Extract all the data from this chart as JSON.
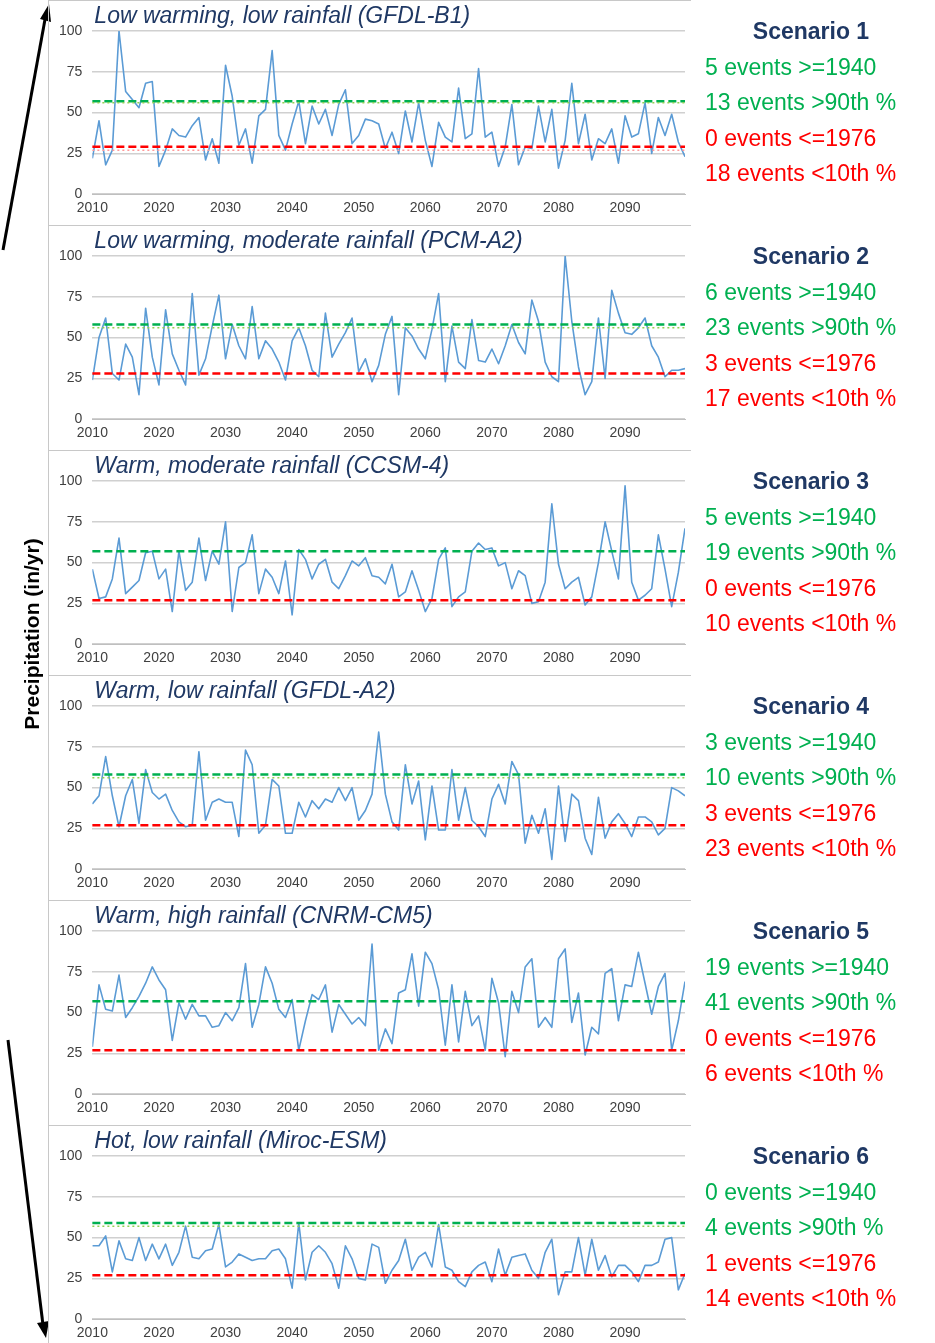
{
  "chart_data": [
    {
      "type": "line",
      "title": "Low warming, low rainfall (GFDL-B1)",
      "xlim": [
        2010,
        2099
      ],
      "xticks": [
        2010,
        2020,
        2030,
        2040,
        2050,
        2060,
        2070,
        2080,
        2090
      ],
      "ylim": [
        0,
        100
      ],
      "yticks": [
        0,
        25,
        50,
        75,
        100
      ],
      "grid": "y",
      "marker": "none",
      "x": [
        2010,
        2011,
        2012,
        2013,
        2014,
        2015,
        2016,
        2017,
        2018,
        2019,
        2020,
        2021,
        2022,
        2023,
        2024,
        2025,
        2026,
        2027,
        2028,
        2029,
        2030,
        2031,
        2032,
        2033,
        2034,
        2035,
        2036,
        2037,
        2038,
        2039,
        2040,
        2041,
        2042,
        2043,
        2044,
        2045,
        2046,
        2047,
        2048,
        2049,
        2050,
        2051,
        2052,
        2053,
        2054,
        2055,
        2056,
        2057,
        2058,
        2059,
        2060,
        2061,
        2062,
        2063,
        2064,
        2065,
        2066,
        2067,
        2068,
        2069,
        2070,
        2071,
        2072,
        2073,
        2074,
        2075,
        2076,
        2077,
        2078,
        2079,
        2080,
        2081,
        2082,
        2083,
        2084,
        2085,
        2086,
        2087,
        2088,
        2089,
        2090,
        2091,
        2092,
        2093,
        2094,
        2095,
        2096,
        2097,
        2098,
        2099
      ],
      "series": [
        {
          "color": "#5b9bd5",
          "values": [
            22,
            45,
            18,
            27,
            100,
            63,
            58,
            53,
            68,
            69,
            17,
            27,
            40,
            36,
            35,
            42,
            47,
            21,
            34,
            19,
            79,
            60,
            30,
            40,
            19,
            48,
            52,
            88,
            36,
            27,
            43,
            57,
            31,
            54,
            43,
            52,
            36,
            55,
            64,
            31,
            36,
            46,
            45,
            43,
            28,
            38,
            25,
            51,
            32,
            56,
            33,
            17,
            44,
            35,
            32,
            65,
            34,
            37,
            77,
            35,
            38,
            17,
            29,
            55,
            18,
            29,
            28,
            54,
            32,
            52,
            16,
            33,
            68,
            31,
            49,
            21,
            34,
            31,
            40,
            19,
            48,
            35,
            37,
            56,
            25,
            47,
            36,
            49,
            32,
            23
          ]
        }
      ],
      "ref_lines": [
        {
          "axis": "y",
          "value": 57,
          "color": "#00b050",
          "line_style": "dashed"
        },
        {
          "axis": "y",
          "value": 29,
          "color": "#ff0000",
          "line_style": "dashed"
        },
        {
          "axis": "y",
          "value": 56,
          "color": "#92d050",
          "line_style": "dotted"
        },
        {
          "axis": "y",
          "value": 27,
          "color": "#ff9999",
          "line_style": "dotted"
        }
      ],
      "annotations": [
        "Scenario 1",
        "5 events >=1940",
        "13 events >90th %",
        "0 events <=1976",
        "18 events <10th %"
      ]
    },
    {
      "type": "line",
      "title": "Low warming, moderate rainfall (PCM-A2)",
      "xlim": [
        2010,
        2099
      ],
      "xticks": [
        2010,
        2020,
        2030,
        2040,
        2050,
        2060,
        2070,
        2080,
        2090
      ],
      "ylim": [
        0,
        100
      ],
      "yticks": [
        0,
        25,
        50,
        75,
        100
      ],
      "grid": "y",
      "marker": "none",
      "x": [
        2010,
        2011,
        2012,
        2013,
        2014,
        2015,
        2016,
        2017,
        2018,
        2019,
        2020,
        2021,
        2022,
        2023,
        2024,
        2025,
        2026,
        2027,
        2028,
        2029,
        2030,
        2031,
        2032,
        2033,
        2034,
        2035,
        2036,
        2037,
        2038,
        2039,
        2040,
        2041,
        2042,
        2043,
        2044,
        2045,
        2046,
        2047,
        2048,
        2049,
        2050,
        2051,
        2052,
        2053,
        2054,
        2055,
        2056,
        2057,
        2058,
        2059,
        2060,
        2061,
        2062,
        2063,
        2064,
        2065,
        2066,
        2067,
        2068,
        2069,
        2070,
        2071,
        2072,
        2073,
        2074,
        2075,
        2076,
        2077,
        2078,
        2079,
        2080,
        2081,
        2082,
        2083,
        2084,
        2085,
        2086,
        2087,
        2088,
        2089,
        2090,
        2091,
        2092,
        2093,
        2094,
        2095,
        2096,
        2097,
        2098,
        2099
      ],
      "series": [
        {
          "color": "#5b9bd5",
          "values": [
            24,
            50,
            62,
            28,
            24,
            46,
            38,
            15,
            68,
            38,
            21,
            67,
            40,
            30,
            21,
            77,
            27,
            37,
            57,
            76,
            37,
            58,
            45,
            37,
            69,
            37,
            48,
            43,
            35,
            24,
            48,
            56,
            45,
            30,
            26,
            65,
            38,
            46,
            53,
            62,
            29,
            37,
            23,
            33,
            52,
            63,
            15,
            56,
            51,
            43,
            37,
            55,
            77,
            23,
            57,
            35,
            31,
            61,
            36,
            35,
            43,
            34,
            45,
            58,
            47,
            40,
            73,
            60,
            35,
            26,
            23,
            100,
            60,
            32,
            15,
            23,
            62,
            25,
            79,
            65,
            53,
            52,
            56,
            62,
            45,
            38,
            26,
            30,
            30,
            31
          ]
        }
      ],
      "ref_lines": [
        {
          "axis": "y",
          "value": 58,
          "color": "#00b050",
          "line_style": "dashed"
        },
        {
          "axis": "y",
          "value": 28,
          "color": "#ff0000",
          "line_style": "dashed"
        },
        {
          "axis": "y",
          "value": 56,
          "color": "#92d050",
          "line_style": "dotted"
        }
      ],
      "annotations": [
        "Scenario 2",
        "6 events >=1940",
        "23 events >90th %",
        "3 events <=1976",
        "17 events <10th %"
      ]
    },
    {
      "type": "line",
      "title": "Warm, moderate rainfall (CCSM-4)",
      "ylabel": "Precipitation (in/yr)",
      "xlim": [
        2010,
        2099
      ],
      "xticks": [
        2010,
        2020,
        2030,
        2040,
        2050,
        2060,
        2070,
        2080,
        2090
      ],
      "ylim": [
        0,
        100
      ],
      "yticks": [
        0,
        25,
        50,
        75,
        100
      ],
      "grid": "y",
      "marker": "none",
      "x": [
        2010,
        2011,
        2012,
        2013,
        2014,
        2015,
        2016,
        2017,
        2018,
        2019,
        2020,
        2021,
        2022,
        2023,
        2024,
        2025,
        2026,
        2027,
        2028,
        2029,
        2030,
        2031,
        2032,
        2033,
        2034,
        2035,
        2036,
        2037,
        2038,
        2039,
        2040,
        2041,
        2042,
        2043,
        2044,
        2045,
        2046,
        2047,
        2048,
        2049,
        2050,
        2051,
        2052,
        2053,
        2054,
        2055,
        2056,
        2057,
        2058,
        2059,
        2060,
        2061,
        2062,
        2063,
        2064,
        2065,
        2066,
        2067,
        2068,
        2069,
        2070,
        2071,
        2072,
        2073,
        2074,
        2075,
        2076,
        2077,
        2078,
        2079,
        2080,
        2081,
        2082,
        2083,
        2084,
        2085,
        2086,
        2087,
        2088,
        2089,
        2090,
        2091,
        2092,
        2093,
        2094,
        2095,
        2096,
        2097,
        2098,
        2099
      ],
      "series": [
        {
          "color": "#5b9bd5",
          "values": [
            46,
            28,
            29,
            40,
            65,
            31,
            35,
            39,
            56,
            57,
            40,
            46,
            20,
            57,
            33,
            38,
            65,
            39,
            57,
            49,
            75,
            20,
            47,
            50,
            67,
            31,
            46,
            41,
            31,
            51,
            18,
            58,
            52,
            40,
            49,
            52,
            38,
            34,
            42,
            51,
            48,
            53,
            42,
            41,
            37,
            49,
            29,
            32,
            45,
            33,
            20,
            28,
            52,
            59,
            23,
            29,
            32,
            57,
            62,
            58,
            59,
            48,
            50,
            34,
            45,
            42,
            25,
            26,
            38,
            86,
            49,
            34,
            38,
            41,
            24,
            29,
            50,
            75,
            57,
            40,
            97,
            38,
            27,
            30,
            34,
            67,
            46,
            23,
            44,
            71
          ]
        }
      ],
      "ref_lines": [
        {
          "axis": "y",
          "value": 57,
          "color": "#00b050",
          "line_style": "dashed"
        },
        {
          "axis": "y",
          "value": 27,
          "color": "#ff0000",
          "line_style": "dashed"
        }
      ],
      "annotations": [
        "Scenario 3",
        "5 events >=1940",
        "19 events >90th %",
        "0 events <=1976",
        "10 events <10th %"
      ]
    },
    {
      "type": "line",
      "title": "Warm, low rainfall (GFDL-A2)",
      "xlim": [
        2010,
        2099
      ],
      "xticks": [
        2010,
        2020,
        2030,
        2040,
        2050,
        2060,
        2070,
        2080,
        2090
      ],
      "ylim": [
        0,
        100
      ],
      "yticks": [
        0,
        25,
        50,
        75,
        100
      ],
      "grid": "y",
      "marker": "none",
      "x": [
        2010,
        2011,
        2012,
        2013,
        2014,
        2015,
        2016,
        2017,
        2018,
        2019,
        2020,
        2021,
        2022,
        2023,
        2024,
        2025,
        2026,
        2027,
        2028,
        2029,
        2030,
        2031,
        2032,
        2033,
        2034,
        2035,
        2036,
        2037,
        2038,
        2039,
        2040,
        2041,
        2042,
        2043,
        2044,
        2045,
        2046,
        2047,
        2048,
        2049,
        2050,
        2051,
        2052,
        2053,
        2054,
        2055,
        2056,
        2057,
        2058,
        2059,
        2060,
        2061,
        2062,
        2063,
        2064,
        2065,
        2066,
        2067,
        2068,
        2069,
        2070,
        2071,
        2072,
        2073,
        2074,
        2075,
        2076,
        2077,
        2078,
        2079,
        2080,
        2081,
        2082,
        2083,
        2084,
        2085,
        2086,
        2087,
        2088,
        2089,
        2090,
        2091,
        2092,
        2093,
        2094,
        2095,
        2096,
        2097,
        2098,
        2099
      ],
      "series": [
        {
          "color": "#5b9bd5",
          "values": [
            40,
            45,
            69,
            45,
            26,
            45,
            55,
            28,
            61,
            47,
            43,
            46,
            36,
            29,
            26,
            27,
            72,
            30,
            41,
            43,
            41,
            41,
            20,
            73,
            64,
            22,
            27,
            55,
            51,
            22,
            22,
            41,
            32,
            42,
            37,
            43,
            41,
            50,
            42,
            50,
            30,
            36,
            46,
            84,
            46,
            29,
            24,
            64,
            40,
            54,
            18,
            51,
            24,
            24,
            61,
            30,
            50,
            30,
            26,
            20,
            43,
            52,
            40,
            66,
            58,
            16,
            33,
            22,
            37,
            6,
            51,
            17,
            46,
            42,
            19,
            9,
            44,
            19,
            29,
            34,
            28,
            20,
            32,
            32,
            29,
            21,
            25,
            50,
            48,
            45
          ]
        }
      ],
      "ref_lines": [
        {
          "axis": "y",
          "value": 58,
          "color": "#00b050",
          "line_style": "dashed"
        },
        {
          "axis": "y",
          "value": 27,
          "color": "#ff0000",
          "line_style": "dashed"
        },
        {
          "axis": "y",
          "value": 56,
          "color": "#92d050",
          "line_style": "dotted"
        }
      ],
      "annotations": [
        "Scenario 4",
        "3 events >=1940",
        "10 events >90th %",
        "3 events <=1976",
        "23 events <10th %"
      ]
    },
    {
      "type": "line",
      "title": "Warm, high rainfall (CNRM-CM5)",
      "xlim": [
        2010,
        2099
      ],
      "xticks": [
        2010,
        2020,
        2030,
        2040,
        2050,
        2060,
        2070,
        2080,
        2090
      ],
      "ylim": [
        0,
        100
      ],
      "yticks": [
        0,
        25,
        50,
        75,
        100
      ],
      "grid": "y",
      "marker": "none",
      "x": [
        2010,
        2011,
        2012,
        2013,
        2014,
        2015,
        2016,
        2017,
        2018,
        2019,
        2020,
        2021,
        2022,
        2023,
        2024,
        2025,
        2026,
        2027,
        2028,
        2029,
        2030,
        2031,
        2032,
        2033,
        2034,
        2035,
        2036,
        2037,
        2038,
        2039,
        2040,
        2041,
        2042,
        2043,
        2044,
        2045,
        2046,
        2047,
        2048,
        2049,
        2050,
        2051,
        2052,
        2053,
        2054,
        2055,
        2056,
        2057,
        2058,
        2059,
        2060,
        2061,
        2062,
        2063,
        2064,
        2065,
        2066,
        2067,
        2068,
        2069,
        2070,
        2071,
        2072,
        2073,
        2074,
        2075,
        2076,
        2077,
        2078,
        2079,
        2080,
        2081,
        2082,
        2083,
        2084,
        2085,
        2086,
        2087,
        2088,
        2089,
        2090,
        2091,
        2092,
        2093,
        2094,
        2095,
        2096,
        2097,
        2098,
        2099
      ],
      "series": [
        {
          "color": "#5b9bd5",
          "values": [
            29,
            67,
            52,
            51,
            73,
            47,
            53,
            60,
            68,
            78,
            70,
            64,
            33,
            56,
            46,
            55,
            48,
            48,
            41,
            42,
            50,
            45,
            53,
            80,
            41,
            55,
            78,
            68,
            52,
            47,
            58,
            27,
            45,
            61,
            58,
            67,
            38,
            55,
            49,
            43,
            47,
            42,
            92,
            27,
            40,
            31,
            62,
            64,
            86,
            54,
            87,
            80,
            64,
            30,
            67,
            32,
            63,
            42,
            48,
            27,
            71,
            56,
            23,
            63,
            50,
            78,
            83,
            41,
            47,
            41,
            83,
            89,
            44,
            62,
            24,
            41,
            37,
            74,
            77,
            45,
            67,
            66,
            87,
            68,
            49,
            66,
            74,
            27,
            45,
            69
          ]
        }
      ],
      "ref_lines": [
        {
          "axis": "y",
          "value": 57,
          "color": "#00b050",
          "line_style": "dashed"
        },
        {
          "axis": "y",
          "value": 27,
          "color": "#ff0000",
          "line_style": "dashed"
        }
      ],
      "annotations": [
        "Scenario 5",
        "19 events >=1940",
        "41 events >90th %",
        "0 events <=1976",
        "6 events <10th %"
      ]
    },
    {
      "type": "line",
      "title": "Hot, low rainfall (Miroc-ESM)",
      "xlim": [
        2010,
        2099
      ],
      "xticks": [
        2010,
        2020,
        2030,
        2040,
        2050,
        2060,
        2070,
        2080,
        2090
      ],
      "ylim": [
        0,
        100
      ],
      "yticks": [
        0,
        25,
        50,
        75,
        100
      ],
      "grid": "y",
      "marker": "none",
      "x": [
        2010,
        2011,
        2012,
        2013,
        2014,
        2015,
        2016,
        2017,
        2018,
        2019,
        2020,
        2021,
        2022,
        2023,
        2024,
        2025,
        2026,
        2027,
        2028,
        2029,
        2030,
        2031,
        2032,
        2033,
        2034,
        2035,
        2036,
        2037,
        2038,
        2039,
        2040,
        2041,
        2042,
        2043,
        2044,
        2045,
        2046,
        2047,
        2048,
        2049,
        2050,
        2051,
        2052,
        2053,
        2054,
        2055,
        2056,
        2057,
        2058,
        2059,
        2060,
        2061,
        2062,
        2063,
        2064,
        2065,
        2066,
        2067,
        2068,
        2069,
        2070,
        2071,
        2072,
        2073,
        2074,
        2075,
        2076,
        2077,
        2078,
        2079,
        2080,
        2081,
        2082,
        2083,
        2084,
        2085,
        2086,
        2087,
        2088,
        2089,
        2090,
        2091,
        2092,
        2093,
        2094,
        2095,
        2096,
        2097,
        2098,
        2099
      ],
      "series": [
        {
          "color": "#5b9bd5",
          "values": [
            45,
            45,
            51,
            29,
            48,
            37,
            36,
            50,
            36,
            46,
            37,
            46,
            33,
            41,
            57,
            38,
            37,
            42,
            43,
            58,
            32,
            35,
            40,
            38,
            36,
            37,
            37,
            42,
            43,
            37,
            19,
            59,
            24,
            41,
            45,
            41,
            34,
            19,
            45,
            37,
            25,
            24,
            46,
            44,
            22,
            30,
            36,
            49,
            30,
            38,
            41,
            32,
            58,
            32,
            30,
            23,
            20,
            29,
            33,
            35,
            23,
            43,
            27,
            38,
            39,
            40,
            30,
            25,
            41,
            49,
            15,
            29,
            29,
            50,
            27,
            49,
            30,
            39,
            26,
            33,
            33,
            29,
            23,
            33,
            33,
            35,
            49,
            50,
            18,
            28
          ]
        }
      ],
      "ref_lines": [
        {
          "axis": "y",
          "value": 59,
          "color": "#00b050",
          "line_style": "dashed"
        },
        {
          "axis": "y",
          "value": 27,
          "color": "#ff0000",
          "line_style": "dashed"
        },
        {
          "axis": "y",
          "value": 57,
          "color": "#92d050",
          "line_style": "dotted"
        }
      ],
      "annotations": [
        "Scenario 6",
        "0 events >=1940",
        "4 events >90th %",
        "1 events <=1976",
        "14 events <10th %"
      ]
    }
  ]
}
